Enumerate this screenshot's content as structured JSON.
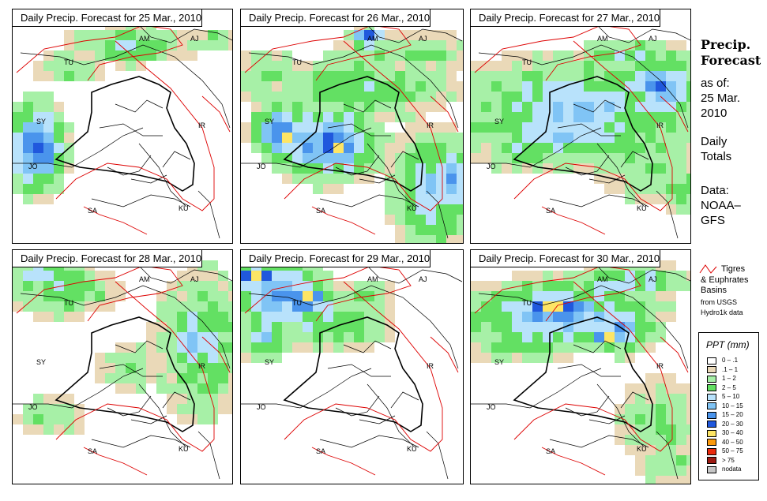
{
  "panels": [
    {
      "title": "Daily Precip. Forecast for  25 Mar., 2010",
      "day": 25
    },
    {
      "title": "Daily Precip. Forecast for  26 Mar., 2010",
      "day": 26
    },
    {
      "title": "Daily Precip. Forecast for  27 Mar., 2010",
      "day": 27
    },
    {
      "title": "Daily Precip. Forecast for  28 Mar., 2010",
      "day": 28
    },
    {
      "title": "Daily Precip. Forecast for  29 Mar., 2010",
      "day": 29
    },
    {
      "title": "Daily Precip. Forecast for  30 Mar., 2010",
      "day": 30
    }
  ],
  "country_labels": [
    "AM",
    "AJ",
    "TU",
    "SY",
    "IR",
    "JO",
    "SA",
    "KU"
  ],
  "sidebar": {
    "title_line1": "Precip.",
    "title_line2": "Forecast",
    "asof_line1": "as of:",
    "asof_line2": "25 Mar.",
    "asof_line3": "2010",
    "totals_line1": "Daily",
    "totals_line2": "Totals",
    "data_line1": "Data:",
    "data_line2": "NOAA–",
    "data_line3": "GFS"
  },
  "basin_legend": {
    "line1": "Tigres",
    "line2": "& Euphrates",
    "line3": "Basins",
    "line4": "from USGS",
    "line5": "Hydro1k data",
    "line_color": "#dd0000"
  },
  "ppt_legend": {
    "title": "PPT (mm)",
    "classes": [
      {
        "label": "0 – .1",
        "color": "#ffffff"
      },
      {
        "label": ".1 – 1",
        "color": "#ead9b8"
      },
      {
        "label": "1 – 2",
        "color": "#a7f0a7"
      },
      {
        "label": "2 – 5",
        "color": "#63e063"
      },
      {
        "label": "5 – 10",
        "color": "#b8e2fb"
      },
      {
        "label": "10 – 15",
        "color": "#80c4f5"
      },
      {
        "label": "15 – 20",
        "color": "#4a94ec"
      },
      {
        "label": "20 – 30",
        "color": "#2058dd"
      },
      {
        "label": "30 – 40",
        "color": "#fde565"
      },
      {
        "label": "40 – 50",
        "color": "#fb9a0e"
      },
      {
        "label": "50 – 75",
        "color": "#ea2a0d"
      },
      {
        "label": "> 75",
        "color": "#9c1a12"
      },
      {
        "label": "nodata",
        "color": "#c6c6c6"
      }
    ]
  }
}
